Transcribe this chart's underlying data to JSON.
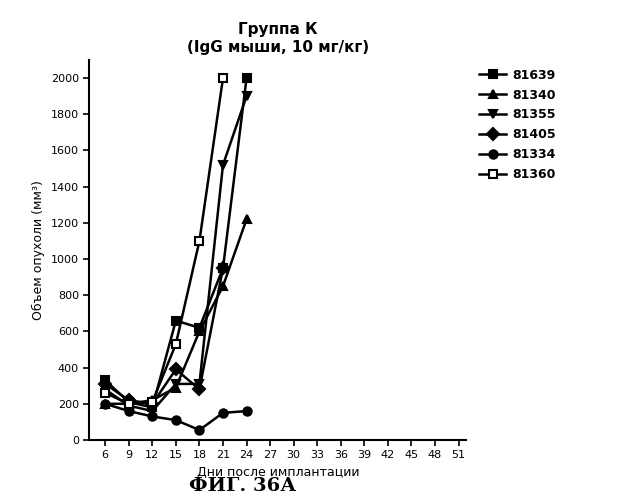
{
  "title_line1": "Группа К",
  "title_line2": "(IgG мыши, 10 мг/кг)",
  "xlabel": "Дни после имплантации",
  "ylabel": "Объем опухоли (мм³)",
  "caption": "ФИГ. 36А",
  "xticks": [
    6,
    9,
    12,
    15,
    18,
    21,
    24,
    27,
    30,
    33,
    36,
    39,
    42,
    45,
    48,
    51
  ],
  "yticks": [
    0,
    200,
    400,
    600,
    800,
    1000,
    1200,
    1400,
    1600,
    1800,
    2000
  ],
  "ylim": [
    0,
    2100
  ],
  "xlim": [
    4,
    52
  ],
  "series": [
    {
      "label": "81639",
      "x": [
        6,
        9,
        12,
        15,
        18,
        21,
        24
      ],
      "y": [
        330,
        210,
        180,
        660,
        620,
        950,
        2000
      ],
      "marker": "s",
      "color": "#000000",
      "fillstyle": "full"
    },
    {
      "label": "81340",
      "x": [
        6,
        9,
        12,
        15,
        18,
        21,
        24
      ],
      "y": [
        200,
        200,
        220,
        290,
        600,
        850,
        1220
      ],
      "marker": "^",
      "color": "#000000",
      "fillstyle": "full"
    },
    {
      "label": "81355",
      "x": [
        6,
        9,
        12,
        15,
        18,
        21,
        24
      ],
      "y": [
        280,
        190,
        160,
        310,
        310,
        1520,
        1900
      ],
      "marker": "v",
      "color": "#000000",
      "fillstyle": "full"
    },
    {
      "label": "81405",
      "x": [
        6,
        9,
        12,
        15,
        18,
        21
      ],
      "y": [
        310,
        220,
        200,
        390,
        280,
        950
      ],
      "marker": "D",
      "color": "#000000",
      "fillstyle": "full"
    },
    {
      "label": "81334",
      "x": [
        6,
        9,
        12,
        15,
        18,
        21,
        24
      ],
      "y": [
        200,
        160,
        130,
        110,
        55,
        150,
        160
      ],
      "marker": "o",
      "color": "#000000",
      "fillstyle": "full"
    },
    {
      "label": "81360",
      "x": [
        6,
        9,
        12,
        15,
        18,
        21
      ],
      "y": [
        260,
        200,
        210,
        530,
        1100,
        2000
      ],
      "marker": "s",
      "color": "#000000",
      "fillstyle": "none"
    }
  ],
  "background_color": "#ffffff",
  "linewidth": 1.8,
  "markersize": 6,
  "title_fontsize": 11,
  "label_fontsize": 9,
  "tick_fontsize": 8,
  "legend_fontsize": 9,
  "caption_fontsize": 14
}
